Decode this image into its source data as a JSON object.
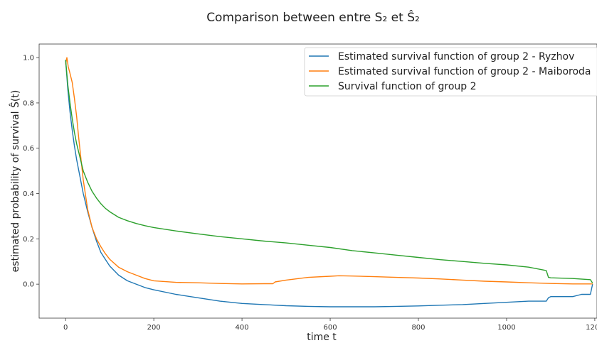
{
  "chart_data": {
    "type": "line",
    "title": "Comparison between entre S₂ et Ŝ₂",
    "xlabel": "time t",
    "ylabel": "estimated probability of survival Ŝ(t)",
    "xlim": [
      -60,
      1205
    ],
    "ylim": [
      -0.15,
      1.06
    ],
    "xticks": [
      0,
      200,
      400,
      600,
      800,
      1000,
      1200
    ],
    "yticks": [
      0.0,
      0.2,
      0.4,
      0.6,
      0.8,
      1.0
    ],
    "xtick_labels": [
      "0",
      "200",
      "400",
      "600",
      "800",
      "1000",
      "1200"
    ],
    "ytick_labels": [
      "0.0",
      "0.2",
      "0.4",
      "0.6",
      "0.8",
      "1.0"
    ],
    "grid": false,
    "legend_position": "top-right",
    "series": [
      {
        "name": "Estimated survival function of group 2 - Ryzhov",
        "color": "#1f77b4",
        "x": [
          0,
          5,
          10,
          15,
          20,
          25,
          30,
          40,
          50,
          60,
          70,
          80,
          90,
          100,
          120,
          140,
          160,
          180,
          200,
          250,
          300,
          350,
          400,
          450,
          500,
          550,
          600,
          650,
          700,
          750,
          800,
          850,
          900,
          950,
          1000,
          1050,
          1090,
          1095,
          1100,
          1150,
          1170,
          1190,
          1195
        ],
        "y": [
          0.99,
          0.86,
          0.76,
          0.68,
          0.61,
          0.55,
          0.5,
          0.4,
          0.32,
          0.25,
          0.19,
          0.14,
          0.11,
          0.08,
          0.04,
          0.015,
          0.0,
          -0.015,
          -0.025,
          -0.045,
          -0.06,
          -0.075,
          -0.085,
          -0.09,
          -0.095,
          -0.098,
          -0.1,
          -0.1,
          -0.1,
          -0.098,
          -0.096,
          -0.093,
          -0.09,
          -0.085,
          -0.08,
          -0.075,
          -0.075,
          -0.06,
          -0.055,
          -0.055,
          -0.045,
          -0.045,
          0.0
        ]
      },
      {
        "name": "Estimated survival function of group 2 - Maiboroda",
        "color": "#ff7f0e",
        "x": [
          0,
          3,
          6,
          10,
          15,
          20,
          25,
          30,
          40,
          50,
          60,
          70,
          80,
          90,
          100,
          120,
          140,
          160,
          180,
          200,
          250,
          300,
          350,
          400,
          450,
          470,
          475,
          500,
          550,
          600,
          620,
          650,
          700,
          750,
          800,
          850,
          900,
          950,
          1000,
          1050,
          1100,
          1150,
          1195
        ],
        "y": [
          0.97,
          1.0,
          0.96,
          0.93,
          0.89,
          0.82,
          0.74,
          0.64,
          0.46,
          0.33,
          0.25,
          0.2,
          0.165,
          0.135,
          0.11,
          0.075,
          0.055,
          0.04,
          0.025,
          0.015,
          0.008,
          0.006,
          0.003,
          0.001,
          0.002,
          0.002,
          0.01,
          0.018,
          0.03,
          0.035,
          0.037,
          0.036,
          0.033,
          0.03,
          0.027,
          0.023,
          0.018,
          0.013,
          0.01,
          0.006,
          0.003,
          0.001,
          0.001
        ]
      },
      {
        "name": "Survival function of group 2",
        "color": "#2ca02c",
        "x": [
          0,
          5,
          10,
          15,
          20,
          25,
          30,
          40,
          50,
          60,
          70,
          80,
          90,
          100,
          120,
          140,
          160,
          180,
          200,
          250,
          300,
          350,
          400,
          450,
          500,
          550,
          600,
          650,
          700,
          750,
          800,
          850,
          900,
          950,
          1000,
          1050,
          1090,
          1095,
          1100,
          1150,
          1190,
          1195
        ],
        "y": [
          0.99,
          0.88,
          0.8,
          0.73,
          0.67,
          0.62,
          0.58,
          0.5,
          0.45,
          0.41,
          0.38,
          0.355,
          0.335,
          0.32,
          0.295,
          0.28,
          0.268,
          0.258,
          0.25,
          0.235,
          0.222,
          0.21,
          0.2,
          0.19,
          0.182,
          0.172,
          0.162,
          0.148,
          0.138,
          0.128,
          0.118,
          0.108,
          0.1,
          0.092,
          0.085,
          0.075,
          0.06,
          0.03,
          0.028,
          0.025,
          0.02,
          0.005
        ]
      }
    ]
  }
}
